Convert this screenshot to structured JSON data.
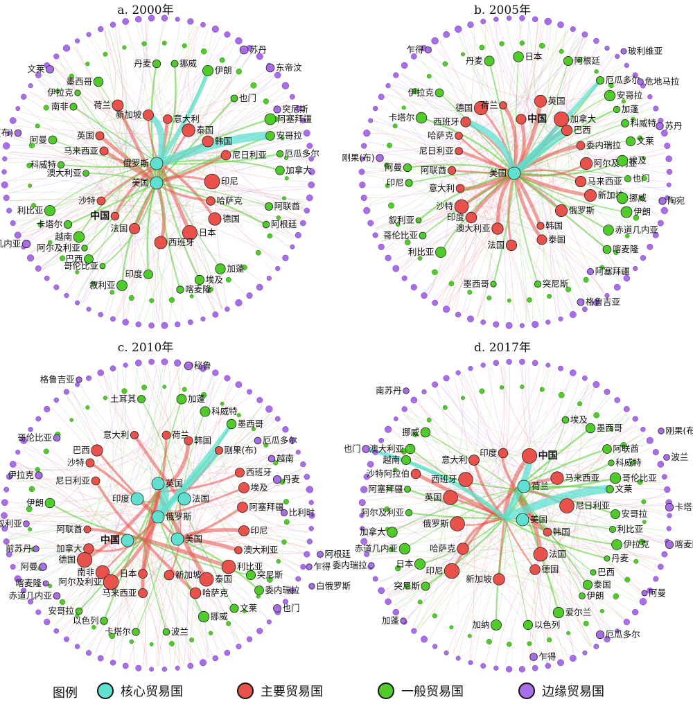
{
  "colors": {
    "core": "#5fe0d0",
    "major": "#e8524a",
    "general": "#4fcc2a",
    "marginal": "#a96de8"
  },
  "legend": {
    "title": "图例",
    "items": [
      {
        "key": "core",
        "label": "核心贸易国"
      },
      {
        "key": "major",
        "label": "主要贸易国"
      },
      {
        "key": "general",
        "label": "一般贸易国"
      },
      {
        "key": "marginal",
        "label": "边缘贸易国"
      }
    ]
  },
  "panels": [
    {
      "title": "a. 2000年",
      "labels": [
        {
          "t": "苏丹"
        },
        {
          "t": "文莱"
        },
        {
          "t": "东帝汶"
        },
        {
          "t": "丹麦"
        },
        {
          "t": "挪威"
        },
        {
          "t": "伊朗"
        },
        {
          "t": "墨西哥"
        },
        {
          "t": "伊拉克"
        },
        {
          "t": "南非"
        },
        {
          "t": "也门"
        },
        {
          "t": "突尼斯"
        },
        {
          "t": "荷兰"
        },
        {
          "t": "新加坡"
        },
        {
          "t": "意大利"
        },
        {
          "t": "阿塞拜疆"
        },
        {
          "t": "泰国"
        },
        {
          "t": "刚果(布)"
        },
        {
          "t": "英国"
        },
        {
          "t": "韩国"
        },
        {
          "t": "安哥拉"
        },
        {
          "t": "阿曼"
        },
        {
          "t": "马来西亚"
        },
        {
          "t": "厄瓜多尔"
        },
        {
          "t": "尼日利亚"
        },
        {
          "t": "科威特"
        },
        {
          "t": "俄罗斯"
        },
        {
          "t": "加拿大"
        },
        {
          "t": "澳大利亚"
        },
        {
          "t": "美国"
        },
        {
          "t": "印尼"
        },
        {
          "t": "沙特"
        },
        {
          "t": "哈萨克"
        },
        {
          "t": "利比亚"
        },
        {
          "t": "阿联酋"
        },
        {
          "t": "中国",
          "b": true
        },
        {
          "t": "卡塔尔"
        },
        {
          "t": "德国"
        },
        {
          "t": "阿根廷"
        },
        {
          "t": "越南"
        },
        {
          "t": "法国"
        },
        {
          "t": "日本"
        },
        {
          "t": "赤道几内亚"
        },
        {
          "t": "阿尔及利亚"
        },
        {
          "t": "西班牙"
        },
        {
          "t": "巴西"
        },
        {
          "t": "哥伦比亚"
        },
        {
          "t": "加蓬"
        },
        {
          "t": "印度"
        },
        {
          "t": "埃及"
        },
        {
          "t": "叙利亚"
        },
        {
          "t": "喀麦隆"
        }
      ]
    },
    {
      "title": "b. 2005年",
      "labels": [
        {
          "t": "乍得"
        },
        {
          "t": "日本"
        },
        {
          "t": "玻利维亚"
        },
        {
          "t": "丹麦"
        },
        {
          "t": "阿根廷"
        },
        {
          "t": "厄瓜多尔"
        },
        {
          "t": "危地马拉"
        },
        {
          "t": "伊拉克"
        },
        {
          "t": "英国"
        },
        {
          "t": "安哥拉"
        },
        {
          "t": "德国"
        },
        {
          "t": "荷兰"
        },
        {
          "t": "西班牙"
        },
        {
          "t": "加拿大"
        },
        {
          "t": "加蓬"
        },
        {
          "t": "卡塔尔"
        },
        {
          "t": "中国",
          "b": true
        },
        {
          "t": "科威特"
        },
        {
          "t": "哈萨克"
        },
        {
          "t": "巴西"
        },
        {
          "t": "尼日利亚"
        },
        {
          "t": "委内瑞拉"
        },
        {
          "t": "文莱"
        },
        {
          "t": "苏丹"
        },
        {
          "t": "刚果(布)"
        },
        {
          "t": "阿曼"
        },
        {
          "t": "阿尔及利亚"
        },
        {
          "t": "埃及"
        },
        {
          "t": "阿联酋"
        },
        {
          "t": "美国"
        },
        {
          "t": "印尼"
        },
        {
          "t": "马来西亚"
        },
        {
          "t": "也门"
        },
        {
          "t": "意大利"
        },
        {
          "t": "新加坡"
        },
        {
          "t": "挪威"
        },
        {
          "t": "陶宛"
        },
        {
          "t": "沙特"
        },
        {
          "t": "伊朗"
        },
        {
          "t": "叙利亚"
        },
        {
          "t": "印度"
        },
        {
          "t": "俄罗斯"
        },
        {
          "t": "赤道几内亚"
        },
        {
          "t": "韩国"
        },
        {
          "t": "哥伦比亚"
        },
        {
          "t": "澳大利亚"
        },
        {
          "t": "利比亚"
        },
        {
          "t": "泰国"
        },
        {
          "t": "法国"
        },
        {
          "t": "喀麦隆"
        },
        {
          "t": "阿塞拜疆"
        },
        {
          "t": "墨西哥"
        },
        {
          "t": "突尼斯"
        },
        {
          "t": "格鲁吉亚"
        }
      ]
    },
    {
      "title": "c. 2010年",
      "labels": [
        {
          "t": "秘鲁"
        },
        {
          "t": "格鲁吉亚"
        },
        {
          "t": "土耳其"
        },
        {
          "t": "加蓬"
        },
        {
          "t": "科威特"
        },
        {
          "t": "墨西哥"
        },
        {
          "t": "厄瓜多尔"
        },
        {
          "t": "意大利"
        },
        {
          "t": "荷兰"
        },
        {
          "t": "哥伦比亚"
        },
        {
          "t": "巴西"
        },
        {
          "t": "韩国"
        },
        {
          "t": "刚果(布)"
        },
        {
          "t": "越南"
        },
        {
          "t": "沙特"
        },
        {
          "t": "丹麦"
        },
        {
          "t": "西班牙"
        },
        {
          "t": "伊拉克"
        },
        {
          "t": "尼日利亚"
        },
        {
          "t": "英国"
        },
        {
          "t": "埃及"
        },
        {
          "t": "印度"
        },
        {
          "t": "法国"
        },
        {
          "t": "伊朗"
        },
        {
          "t": "阿塞拜疆"
        },
        {
          "t": "比利时"
        },
        {
          "t": "俄罗斯"
        },
        {
          "t": "叙利亚"
        },
        {
          "t": "阿联酋"
        },
        {
          "t": "印尼"
        },
        {
          "t": "中国",
          "b": true
        },
        {
          "t": "美国"
        },
        {
          "t": "前苏丹"
        },
        {
          "t": "加拿大"
        },
        {
          "t": "澳大利亚"
        },
        {
          "t": "阿根廷"
        },
        {
          "t": "德国"
        },
        {
          "t": "阿曼"
        },
        {
          "t": "利比亚"
        },
        {
          "t": "乍得"
        },
        {
          "t": "南非"
        },
        {
          "t": "日本"
        },
        {
          "t": "新加坡"
        },
        {
          "t": "突尼斯"
        },
        {
          "t": "喀麦隆"
        },
        {
          "t": "阿尔及利亚"
        },
        {
          "t": "泰国"
        },
        {
          "t": "赤道几内亚"
        },
        {
          "t": "哈萨克"
        },
        {
          "t": "委内瑞拉"
        },
        {
          "t": "白俄罗斯"
        },
        {
          "t": "马来西亚"
        },
        {
          "t": "文莱"
        },
        {
          "t": "安哥拉"
        },
        {
          "t": "也门"
        },
        {
          "t": "挪威"
        },
        {
          "t": "以色列"
        },
        {
          "t": "卡塔尔"
        },
        {
          "t": "波兰"
        }
      ]
    },
    {
      "title": "d. 2017年",
      "labels": [
        {
          "t": "南苏丹"
        },
        {
          "t": "挪威"
        },
        {
          "t": "埃及"
        },
        {
          "t": "墨西哥"
        },
        {
          "t": "刚果(布)"
        },
        {
          "t": "也门"
        },
        {
          "t": "澳大利亚"
        },
        {
          "t": "阿联酋"
        },
        {
          "t": "波兰"
        },
        {
          "t": "越南"
        },
        {
          "t": "意大利"
        },
        {
          "t": "印度"
        },
        {
          "t": "中国",
          "b": true
        },
        {
          "t": "科威特"
        },
        {
          "t": "沙特阿拉伯"
        },
        {
          "t": "哥伦比亚"
        },
        {
          "t": "西班牙"
        },
        {
          "t": "马来西亚"
        },
        {
          "t": "阿塞拜疆"
        },
        {
          "t": "文莱"
        },
        {
          "t": "荷兰"
        },
        {
          "t": "卡塔尔"
        },
        {
          "t": "英国"
        },
        {
          "t": "尼日利亚"
        },
        {
          "t": "阿尔及利亚"
        },
        {
          "t": "安哥拉"
        },
        {
          "t": "俄罗斯"
        },
        {
          "t": "美国"
        },
        {
          "t": "利比亚"
        },
        {
          "t": "加拿大"
        },
        {
          "t": "喀麦隆"
        },
        {
          "t": "韩国"
        },
        {
          "t": "伊拉克"
        },
        {
          "t": "赤道几内亚"
        },
        {
          "t": "哈萨克"
        },
        {
          "t": "委内瑞拉"
        },
        {
          "t": "日本"
        },
        {
          "t": "法国"
        },
        {
          "t": "丹麦"
        },
        {
          "t": "印尼"
        },
        {
          "t": "德国"
        },
        {
          "t": "巴西"
        },
        {
          "t": "新加坡"
        },
        {
          "t": "泰国"
        },
        {
          "t": "突尼斯"
        },
        {
          "t": "伊朗"
        },
        {
          "t": "阿曼"
        },
        {
          "t": "爱尔兰"
        },
        {
          "t": "加蓬"
        },
        {
          "t": "加纳"
        },
        {
          "t": "以色列"
        },
        {
          "t": "厄瓜多尔"
        },
        {
          "t": "乍得"
        }
      ]
    }
  ]
}
